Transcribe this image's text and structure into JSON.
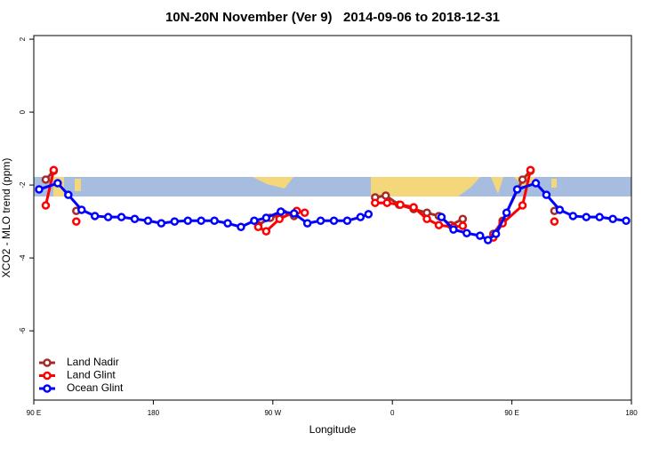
{
  "chart_data": {
    "type": "line",
    "title": "10N-20N November (Ver 9)   2014-09-06 to 2018-12-31",
    "x_label": "Longitude",
    "y_label": "XCO2 - MLO trend (ppm)",
    "xlim": [
      90,
      540
    ],
    "xticks": [
      {
        "value": 90,
        "label": "90 E"
      },
      180,
      {
        "value": 270,
        "label": "90 W"
      },
      {
        "value": 360,
        "label": "0"
      },
      {
        "value": 450,
        "label": "90 E"
      },
      {
        "value": 540,
        "label": "180"
      }
    ],
    "ylim": [
      -7.9,
      2.1
    ],
    "yticks": [
      -6,
      -4,
      -2,
      0,
      2
    ],
    "legend": "bottom-left",
    "series": [
      {
        "name": "Land Nadir",
        "color": "#a52a2a",
        "x": [
          99,
          105,
          null,
          122,
          null,
          259,
          268,
          278,
          286,
          null,
          347,
          355,
          365,
          376,
          386,
          395,
          404,
          413,
          null,
          436,
          443,
          458,
          464,
          null,
          482
        ],
        "values": [
          -1.85,
          -1.61,
          null,
          -2.71,
          null,
          -3.1,
          -2.9,
          -2.78,
          -2.85,
          null,
          -2.34,
          -2.29,
          -2.54,
          -2.66,
          -2.76,
          -2.85,
          -3.1,
          -2.93,
          null,
          -3.34,
          -2.98,
          -1.85,
          -1.61,
          null,
          -2.71
        ]
      },
      {
        "name": "Land Glint",
        "color": "#ff0000",
        "x": [
          99,
          105,
          null,
          122,
          null,
          259,
          265,
          275,
          288,
          294,
          null,
          347,
          356,
          366,
          376,
          386,
          395,
          406,
          413,
          null,
          436,
          443,
          458,
          464,
          null,
          482
        ],
        "values": [
          -2.56,
          -1.59,
          null,
          -3.0,
          null,
          -3.15,
          -3.27,
          -2.93,
          -2.71,
          -2.76,
          null,
          -2.49,
          -2.49,
          -2.54,
          -2.61,
          -2.93,
          -3.1,
          -3.15,
          -3.12,
          null,
          -3.44,
          -3.05,
          -2.56,
          -1.59,
          null,
          -3.0
        ]
      },
      {
        "name": "Ocean Glint",
        "color": "#0000ff",
        "x": [
          94,
          108,
          116,
          126,
          136,
          146,
          156,
          166,
          176,
          186,
          196,
          206,
          216,
          226,
          236,
          246,
          256,
          265,
          276,
          286,
          296,
          306,
          316,
          326,
          336,
          342,
          null,
          397,
          406,
          416,
          426,
          432,
          438,
          446,
          454,
          468,
          476,
          486,
          496,
          506,
          516,
          526,
          536
        ],
        "values": [
          -2.12,
          -1.95,
          -2.27,
          -2.68,
          -2.85,
          -2.88,
          -2.88,
          -2.93,
          -2.98,
          -3.05,
          -3.0,
          -2.98,
          -2.98,
          -2.98,
          -3.05,
          -3.15,
          -2.98,
          -2.9,
          -2.73,
          -2.78,
          -3.05,
          -2.98,
          -2.98,
          -2.98,
          -2.88,
          -2.8,
          null,
          -2.88,
          -3.22,
          -3.32,
          -3.39,
          -3.51,
          -3.34,
          -2.76,
          -2.12,
          -1.95,
          -2.27,
          -2.68,
          -2.85,
          -2.88,
          -2.88,
          -2.93,
          -2.98
        ]
      }
    ]
  }
}
